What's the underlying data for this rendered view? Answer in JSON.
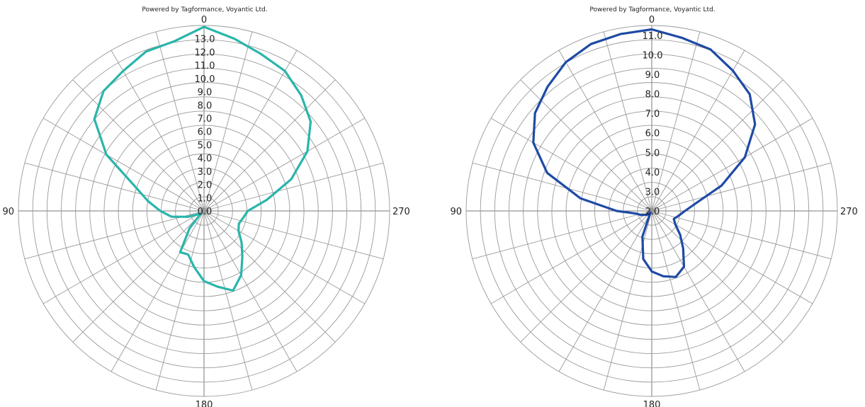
{
  "chart_data": [
    {
      "type": "polar-line",
      "credit": "Powered by Tagformance, Voyantic Ltd.",
      "angle_labels": [
        "0",
        "90",
        "180",
        "270"
      ],
      "radial_ticks": [
        "0.0",
        "1.0",
        "2.0",
        "3.0",
        "4.0",
        "5.0",
        "6.0",
        "7.0",
        "8.0",
        "9.0",
        "10.0",
        "11.0",
        "12.0",
        "13.0"
      ],
      "rlim": [
        0,
        14
      ],
      "angle_direction": "counterclockwise",
      "zero_location": "top",
      "grid": true,
      "color": "#2ab5aa",
      "series": [
        {
          "angles": [
            0,
            10,
            20,
            30,
            40,
            50,
            60,
            70,
            80,
            90,
            100,
            110,
            120,
            130,
            140,
            150,
            160,
            170,
            180,
            190,
            200,
            210,
            220,
            230,
            240,
            250,
            260,
            270,
            280,
            290,
            300,
            310,
            320,
            330,
            340,
            350
          ],
          "values": [
            13.9,
            13.0,
            12.8,
            12.2,
            11.8,
            10.8,
            8.5,
            5.6,
            4.3,
            3.3,
            2.5,
            1.3,
            0.5,
            0.3,
            1.7,
            3.6,
            3.5,
            4.3,
            5.3,
            5.8,
            6.4,
            5.6,
            4.5,
            3.7,
            3.0,
            2.8,
            3.0,
            3.3,
            4.8,
            7.0,
            9.0,
            10.5,
            11.4,
            12.2,
            12.6,
            13.2
          ]
        }
      ]
    },
    {
      "type": "polar-line",
      "credit": "Powered by Tagformance, Voyantic Ltd.",
      "angle_labels": [
        "0",
        "90",
        "180",
        "270"
      ],
      "radial_ticks": [
        "2.0",
        "3.0",
        "4.0",
        "5.0",
        "6.0",
        "7.0",
        "8.0",
        "9.0",
        "10.0",
        "11.0"
      ],
      "rlim": [
        2,
        11.5
      ],
      "angle_direction": "counterclockwise",
      "zero_location": "top",
      "grid": true,
      "color": "#1f4aa5",
      "series": [
        {
          "angles": [
            0,
            10,
            20,
            30,
            40,
            50,
            60,
            70,
            80,
            90,
            100,
            110,
            120,
            130,
            140,
            150,
            160,
            170,
            180,
            190,
            200,
            210,
            220,
            230,
            240,
            250,
            260,
            270,
            280,
            290,
            300,
            310,
            320,
            330,
            340,
            350
          ],
          "values": [
            11.3,
            11.2,
            11.1,
            10.8,
            10.3,
            9.8,
            9.0,
            7.7,
            5.7,
            3.8,
            2.8,
            2.6,
            2.4,
            2.3,
            2.1,
            2.2,
            3.4,
            4.5,
            5.1,
            5.4,
            5.6,
            5.3,
            4.5,
            3.9,
            3.4,
            3.2,
            3.4,
            3.7,
            4.3,
            5.8,
            7.5,
            8.9,
            9.8,
            10.3,
            10.8,
            11.0
          ]
        }
      ]
    }
  ]
}
